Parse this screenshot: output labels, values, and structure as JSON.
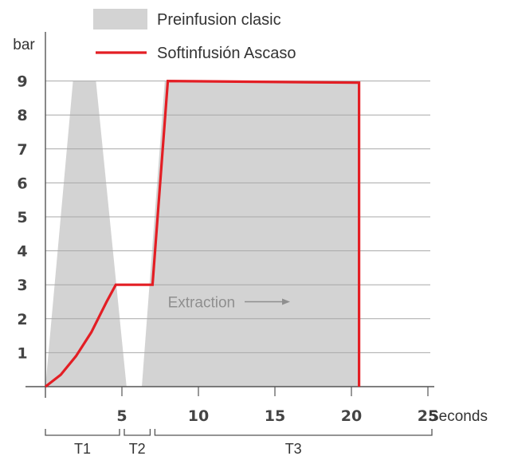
{
  "chart_data": {
    "type": "line",
    "ylabel": "bar",
    "xlabel": "Seconds",
    "xlim": [
      0,
      25
    ],
    "ylim": [
      0,
      9
    ],
    "xticks": [
      5,
      10,
      15,
      20,
      25
    ],
    "yticks": [
      1,
      2,
      3,
      4,
      5,
      6,
      7,
      8,
      9
    ],
    "grid": true,
    "legend_position": "top",
    "series": [
      {
        "name": "Preinfusion clasic",
        "style": "filled-area",
        "color": "#d3d3d3",
        "segments": [
          [
            [
              0,
              0
            ],
            [
              1.8,
              9
            ],
            [
              3.3,
              9
            ],
            [
              5.3,
              0
            ]
          ],
          [
            [
              6.3,
              0
            ],
            [
              7.8,
              9
            ],
            [
              20.5,
              9
            ],
            [
              20.5,
              0
            ]
          ]
        ]
      },
      {
        "name": "Softinfusión Ascaso",
        "style": "line",
        "color": "#e31e24",
        "x": [
          0,
          1,
          2,
          3,
          4,
          4.6,
          7,
          8,
          20.5,
          20.5
        ],
        "y": [
          0,
          0.35,
          0.9,
          1.6,
          2.5,
          3,
          3,
          9,
          8.95,
          0
        ]
      }
    ],
    "annotations": [
      {
        "text": "Extraction",
        "x": 8,
        "y": 2.5,
        "arrow": "right"
      }
    ],
    "phases": [
      {
        "label": "T1",
        "from": 0,
        "to": 5
      },
      {
        "label": "T2",
        "from": 5,
        "to": 7
      },
      {
        "label": "T3",
        "from": 7,
        "to": 25
      }
    ]
  }
}
